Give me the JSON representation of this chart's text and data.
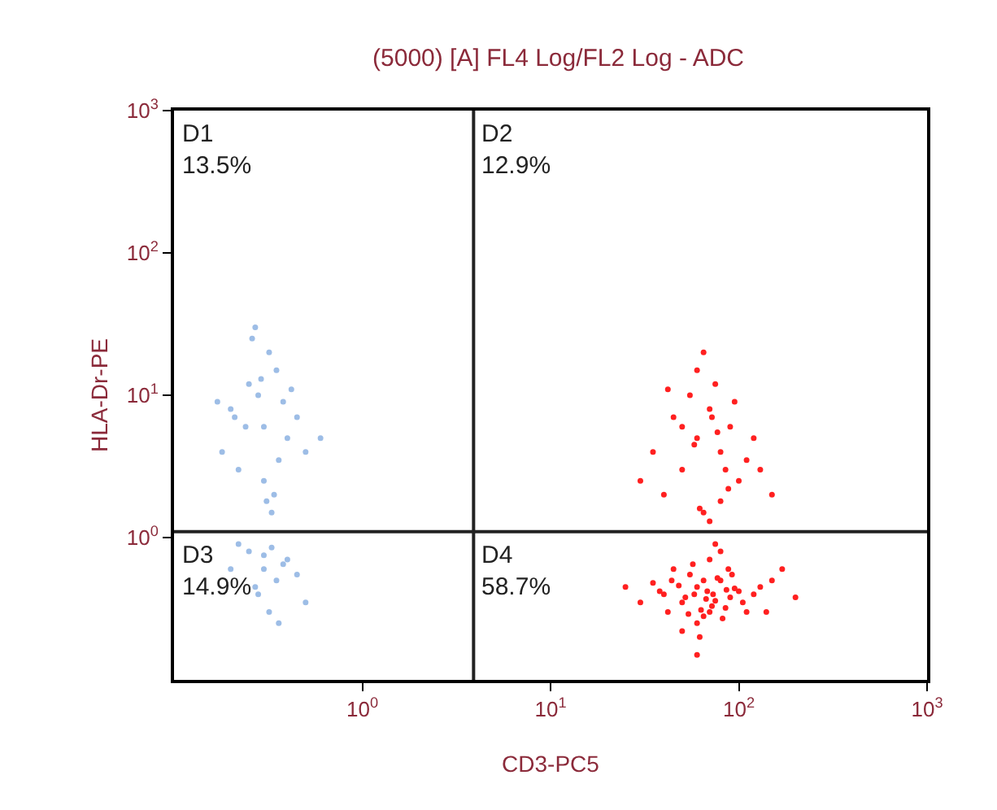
{
  "chart_data": {
    "type": "scatter",
    "title": "(5000) [A] FL4 Log/FL2 Log - ADC",
    "xlabel": "CD3-PC5",
    "ylabel": "HLA-Dr-PE",
    "log": "xy",
    "marker": "circle",
    "xlim": [
      0.1,
      1000
    ],
    "ylim": [
      0.1,
      1000
    ],
    "xticks": [
      {
        "value": 1,
        "label": "10$^{0}$"
      },
      {
        "value": 10,
        "label": "10$^{1}$"
      },
      {
        "value": 100,
        "label": "10$^{2}$"
      },
      {
        "value": 1000,
        "label": "10$^{3}$"
      }
    ],
    "yticks": [
      {
        "value": 1,
        "label": "10$^{0}$"
      },
      {
        "value": 10,
        "label": "10$^{1}$"
      },
      {
        "value": 100,
        "label": "10$^{2}$"
      },
      {
        "value": 1000,
        "label": "10$^{3}$"
      }
    ],
    "ref_lines": [
      {
        "axis": "x",
        "value": 3.9,
        "color": "#222222"
      },
      {
        "axis": "y",
        "value": 1.1,
        "color": "#222222"
      }
    ],
    "annotations": [
      "D1\n13.5%",
      "D2\n12.9%",
      "D3\n14.9%",
      "D4\n58.7%"
    ],
    "series": [
      {
        "color": "#9dbde6",
        "x": [
          0.2,
          0.25,
          0.3,
          0.35,
          0.4,
          0.28,
          0.22,
          0.32,
          0.45,
          0.18,
          0.3,
          0.38,
          0.26,
          0.5,
          0.33,
          0.24,
          0.42,
          0.29,
          0.36,
          0.21,
          0.31,
          0.27,
          0.6,
          0.34,
          0.17,
          0.25,
          0.3,
          0.35,
          0.4,
          0.28,
          0.22,
          0.32,
          0.45,
          0.38,
          0.27,
          0.5,
          0.33,
          0.2,
          0.36,
          0.3
        ],
        "values": [
          8,
          12,
          6,
          15,
          5,
          10,
          3,
          20,
          7,
          4,
          2.5,
          9,
          25,
          4,
          1.5,
          6,
          11,
          13,
          3.5,
          7,
          1.8,
          30,
          5,
          2,
          9,
          0.8,
          0.6,
          0.5,
          0.7,
          0.4,
          0.9,
          0.3,
          0.55,
          0.65,
          0.45,
          0.35,
          0.85,
          0.6,
          0.25,
          0.75
        ]
      },
      {
        "color": "#ff2020",
        "x": [
          40,
          50,
          60,
          70,
          80,
          90,
          100,
          55,
          65,
          75,
          45,
          85,
          120,
          35,
          150,
          60,
          70,
          50,
          95,
          110,
          30,
          65,
          80,
          58,
          72,
          88,
          42,
          130,
          62,
          77,
          40,
          50,
          60,
          70,
          80,
          90,
          100,
          55,
          65,
          75,
          45,
          85,
          120,
          35,
          150,
          60,
          70,
          50,
          95,
          110,
          30,
          65,
          80,
          58,
          72,
          88,
          42,
          130,
          62,
          77,
          52,
          68,
          82,
          48,
          92,
          105,
          57,
          63,
          73,
          67,
          54,
          86,
          44,
          140,
          38,
          170,
          25,
          200,
          60,
          75
        ],
        "values": [
          2,
          3,
          5,
          8,
          4,
          6,
          2.5,
          10,
          1.5,
          12,
          7,
          3,
          5,
          4,
          2,
          15,
          1.3,
          6,
          9,
          3.5,
          2.5,
          20,
          1.8,
          4.5,
          7,
          2.2,
          11,
          3,
          1.6,
          5.5,
          0.4,
          0.35,
          0.45,
          0.3,
          0.5,
          0.38,
          0.42,
          0.55,
          0.28,
          0.36,
          0.6,
          0.32,
          0.4,
          0.48,
          0.5,
          0.25,
          0.7,
          0.22,
          0.44,
          0.3,
          0.35,
          0.5,
          0.8,
          0.4,
          0.33,
          0.6,
          0.3,
          0.45,
          0.2,
          0.52,
          0.38,
          0.42,
          0.27,
          0.46,
          0.55,
          0.35,
          0.65,
          0.31,
          0.4,
          0.37,
          0.29,
          0.43,
          0.5,
          0.3,
          0.42,
          0.6,
          0.45,
          0.38,
          0.15,
          0.9
        ]
      }
    ]
  }
}
